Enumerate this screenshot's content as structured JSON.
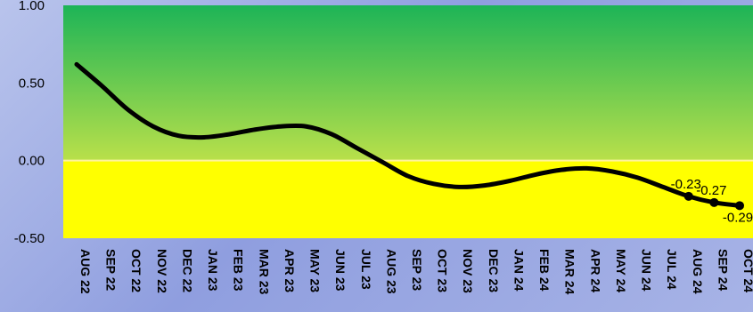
{
  "chart_data": {
    "type": "line",
    "title": "",
    "xlabel": "",
    "ylabel": "",
    "ylim": [
      -0.5,
      1.0
    ],
    "y_ticks": [
      "1.00",
      "0.50",
      "0.00",
      "-0.50"
    ],
    "categories": [
      "AUG 22",
      "SEP 22",
      "OCT 22",
      "NOV 22",
      "DEC 22",
      "JAN 23",
      "FEB 23",
      "MAR 23",
      "APR 23",
      "MAY 23",
      "JUN 23",
      "JUL 23",
      "AUG 23",
      "SEP 23",
      "OCT 23",
      "NOV 23",
      "DEC 23",
      "JAN 24",
      "FEB 24",
      "MAR 24",
      "APR 24",
      "MAY 24",
      "JUN 24",
      "JUL 24",
      "AUG 24",
      "SEP 24",
      "OCT 24"
    ],
    "series": [
      {
        "values": [
          0.62,
          0.48,
          0.33,
          0.22,
          0.16,
          0.15,
          0.17,
          0.2,
          0.22,
          0.22,
          0.17,
          0.08,
          -0.01,
          -0.1,
          -0.15,
          -0.17,
          -0.16,
          -0.13,
          -0.09,
          -0.06,
          -0.05,
          -0.07,
          -0.11,
          -0.17,
          -0.23,
          -0.27,
          -0.29
        ],
        "color": "#000000"
      }
    ],
    "data_labels": [
      {
        "index": 24,
        "text": "-0.23"
      },
      {
        "index": 25,
        "text": "-0.27"
      },
      {
        "index": 26,
        "text": "-0.29"
      }
    ],
    "background_bands": {
      "positive": [
        "#1db457",
        "#b9e04a"
      ],
      "negative": "#ffff00"
    },
    "grid": false,
    "legend": "none"
  }
}
